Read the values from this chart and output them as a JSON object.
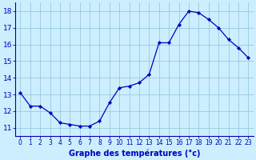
{
  "x": [
    0,
    1,
    2,
    3,
    4,
    5,
    6,
    7,
    8,
    9,
    10,
    11,
    12,
    13,
    14,
    15,
    16,
    17,
    18,
    19,
    20,
    21,
    22,
    23
  ],
  "y": [
    13.1,
    12.3,
    12.3,
    11.9,
    11.3,
    11.2,
    11.1,
    11.1,
    11.4,
    12.5,
    13.4,
    13.5,
    13.7,
    14.2,
    16.1,
    16.1,
    17.2,
    18.0,
    17.9,
    17.5,
    17.0,
    16.3,
    15.8,
    15.2
  ],
  "xlabel": "Graphe des températures (°c)",
  "ylabel_ticks": [
    11,
    12,
    13,
    14,
    15,
    16,
    17,
    18
  ],
  "ylim": [
    10.5,
    18.5
  ],
  "xlim": [
    -0.5,
    23.5
  ],
  "line_color": "#0000bb",
  "marker_color": "#0000bb",
  "bg_color": "#cceeff",
  "grid_color": "#99ccdd",
  "axis_color": "#0000bb",
  "tick_fontsize": 5.5,
  "label_fontsize": 7.0,
  "ytick_fontsize": 6.5
}
